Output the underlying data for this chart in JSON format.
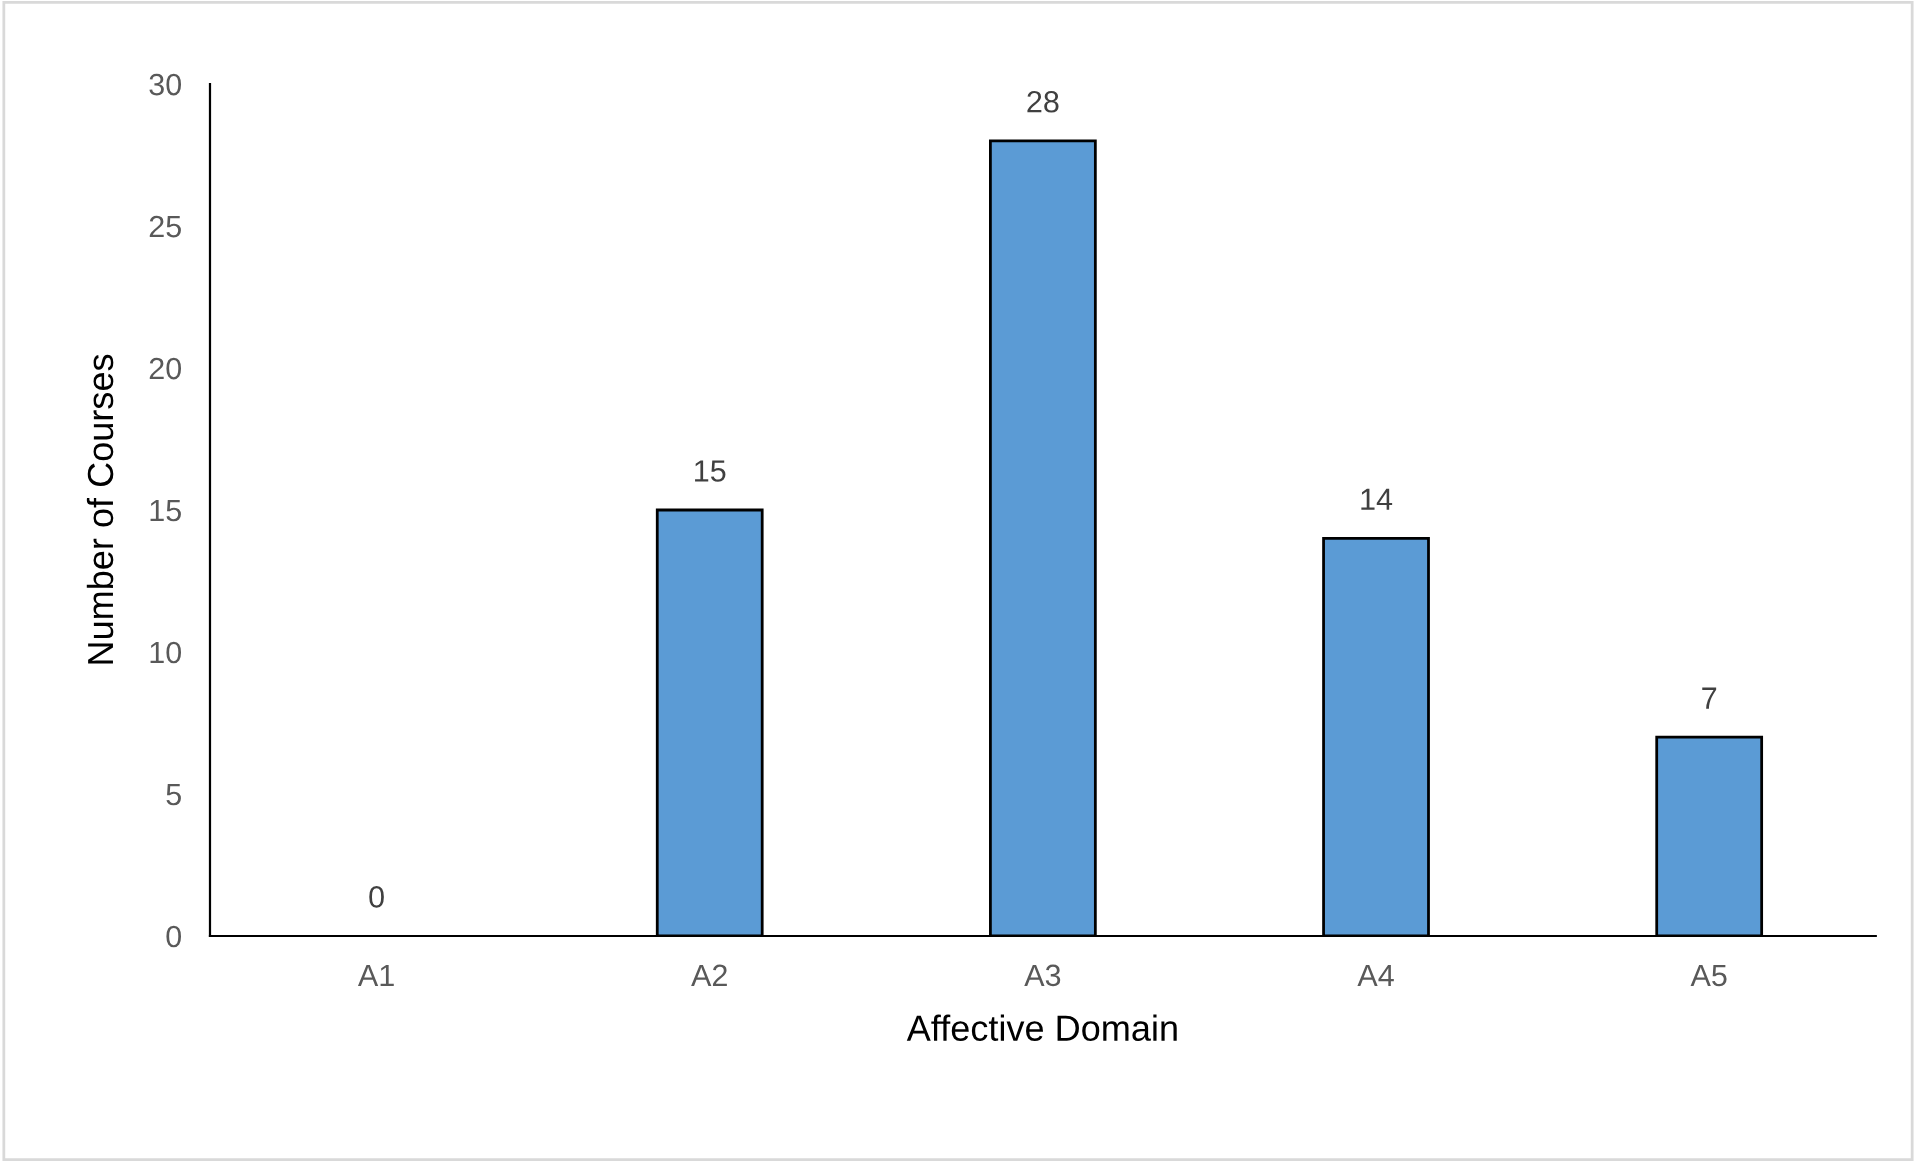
{
  "chart_data": {
    "type": "bar",
    "xlabel": "Affective Domain",
    "ylabel": "Number of Courses",
    "categories": [
      "A1",
      "A2",
      "A3",
      "A4",
      "A5"
    ],
    "values": [
      0,
      15,
      28,
      14,
      7
    ],
    "color": "#5b9bd5",
    "ylim": [
      0,
      30
    ],
    "yticks": [
      0,
      5,
      10,
      15,
      20,
      25,
      30
    ],
    "data_labels": true,
    "grid": false,
    "legend": false
  }
}
